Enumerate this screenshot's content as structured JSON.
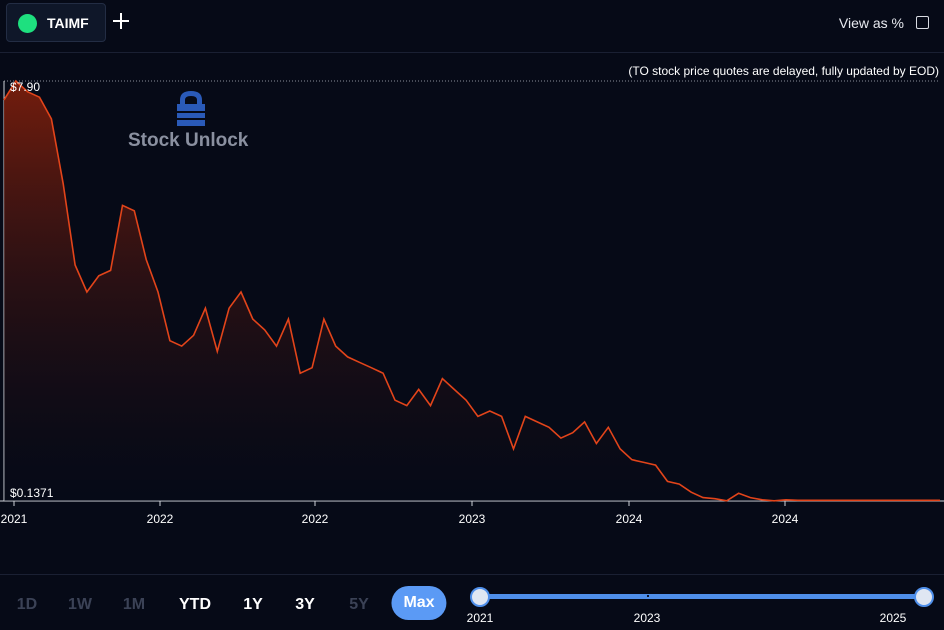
{
  "header": {
    "ticker": "TAIMF",
    "ticker_color": "#1ee07f",
    "add_icon": "plus-icon",
    "view_as_label": "View as %",
    "view_as_checked": false
  },
  "disclaimer": "(TO stock price quotes are delayed, fully updated by EOD)",
  "logo": {
    "text": "Stock Unlock",
    "icon": "lock-logo-icon"
  },
  "chart_data": {
    "type": "area",
    "line_color": "#e2441a",
    "fill_color": "#7a1e0c",
    "y_max_label": "$7.90",
    "y_min_label": "$0.1371",
    "ylim": [
      0.1371,
      7.9
    ],
    "x_tick_labels": [
      "2021",
      "2022",
      "2022",
      "2023",
      "2024",
      "2024"
    ],
    "series": [
      {
        "values": [
          7.55,
          7.9,
          7.7,
          7.6,
          7.2,
          6.0,
          4.5,
          4.0,
          4.3,
          4.4,
          5.6,
          5.5,
          4.6,
          4.0,
          3.1,
          3.0,
          3.2,
          3.7,
          2.9,
          3.7,
          4.0,
          3.5,
          3.3,
          3.0,
          3.5,
          2.5,
          2.6,
          3.5,
          3.0,
          2.8,
          2.7,
          2.6,
          2.5,
          2.0,
          1.9,
          2.2,
          1.9,
          2.4,
          2.2,
          2.0,
          1.7,
          1.8,
          1.7,
          1.1,
          1.7,
          1.6,
          1.5,
          1.3,
          1.4,
          1.6,
          1.2,
          1.5,
          1.1,
          0.9,
          0.85,
          0.8,
          0.5,
          0.45,
          0.3,
          0.2,
          0.18,
          0.14,
          0.28,
          0.2,
          0.16,
          0.14,
          0.16,
          0.15,
          0.15,
          0.15,
          0.15,
          0.15,
          0.15,
          0.15,
          0.15,
          0.15,
          0.15,
          0.15,
          0.15,
          0.15
        ]
      }
    ]
  },
  "range_buttons": [
    {
      "label": "1D",
      "state": "disabled"
    },
    {
      "label": "1W",
      "state": "disabled"
    },
    {
      "label": "1M",
      "state": "disabled"
    },
    {
      "label": "YTD",
      "state": "enabled"
    },
    {
      "label": "1Y",
      "state": "enabled"
    },
    {
      "label": "3Y",
      "state": "enabled"
    },
    {
      "label": "5Y",
      "state": "disabled"
    },
    {
      "label": "Max",
      "state": "selected"
    }
  ],
  "slider": {
    "start_label": "2021",
    "mid_label": "2023",
    "end_label": "2025",
    "accent": "#4f8fea",
    "start_fraction": 0,
    "end_fraction": 1
  }
}
